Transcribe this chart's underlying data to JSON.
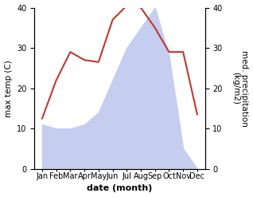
{
  "months": [
    "Jan",
    "Feb",
    "Mar",
    "Apr",
    "May",
    "Jun",
    "Jul",
    "Aug",
    "Sep",
    "Oct",
    "Nov",
    "Dec"
  ],
  "temp": [
    12.5,
    22,
    29,
    27,
    26.5,
    37,
    40.5,
    40,
    35,
    29,
    29,
    13.5
  ],
  "precip": [
    11,
    10,
    10,
    11,
    14,
    22,
    30,
    35,
    40,
    28,
    5,
    0
  ],
  "temp_color": "#c0392b",
  "precip_fill_color": "#c5cdf0",
  "left_ylabel": "max temp (C)",
  "right_ylabel": "med. precipitation\n(kg/m2)",
  "xlabel": "date (month)",
  "ylim_left": [
    0,
    40
  ],
  "ylim_right": [
    0,
    40
  ],
  "left_yticks": [
    0,
    10,
    20,
    30,
    40
  ],
  "right_yticks": [
    0,
    10,
    20,
    30,
    40
  ],
  "tick_fontsize": 7,
  "label_fontsize": 7.5,
  "xlabel_fontsize": 8,
  "background": "#ffffff"
}
